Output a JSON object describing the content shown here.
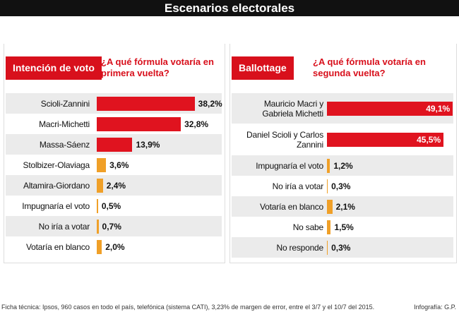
{
  "header": {
    "title": "Escenarios electorales"
  },
  "chart_data": [
    {
      "type": "bar",
      "orientation": "horizontal",
      "title": "Intención de voto",
      "subtitle": "¿A qué fórmula votaría en primera vuelta?",
      "categories": [
        "Scioli-Zannini",
        "Macri-Michetti",
        "Massa-Sáenz",
        "Stolbizer-Olaviaga",
        "Altamira-Giordano",
        "Impugnaría el voto",
        "No iría a votar",
        "Votaría en blanco"
      ],
      "values": [
        38.2,
        32.8,
        13.9,
        3.6,
        2.4,
        0.5,
        0.7,
        2.0
      ],
      "value_labels": [
        "38,2%",
        "32,8%",
        "13,9%",
        "3,6%",
        "2,4%",
        "0,5%",
        "0,7%",
        "2,0%"
      ],
      "colors": [
        "#e0131f",
        "#e0131f",
        "#e0131f",
        "#f0a028",
        "#f0a028",
        "#f0a028",
        "#f0a028",
        "#f0a028"
      ]
    },
    {
      "type": "bar",
      "orientation": "horizontal",
      "title": "Ballottage",
      "subtitle": "¿A qué fórmula votaría en segunda vuelta?",
      "categories": [
        "Mauricio Macri y Gabriela Michetti",
        "Daniel Scioli y Carlos Zannini",
        "Impugnaría el voto",
        "No iría a votar",
        "Votaría en blanco",
        "No sabe",
        "No responde"
      ],
      "values": [
        49.1,
        45.5,
        1.2,
        0.3,
        2.1,
        1.5,
        0.3
      ],
      "value_labels": [
        "49,1%",
        "45,5%",
        "1,2%",
        "0,3%",
        "2,1%",
        "1,5%",
        "0,3%"
      ],
      "colors": [
        "#e0131f",
        "#e0131f",
        "#f0a028",
        "#f0a028",
        "#f0a028",
        "#f0a028",
        "#f0a028"
      ]
    }
  ],
  "footer": {
    "note": "Ficha técnica: Ipsos, 960 casos en todo el país, telefónica (sistema CATI), 3,23% de margen de error, entre el 3/7 y el 10/7 del 2015.",
    "credit": "Infografía: G.P."
  }
}
